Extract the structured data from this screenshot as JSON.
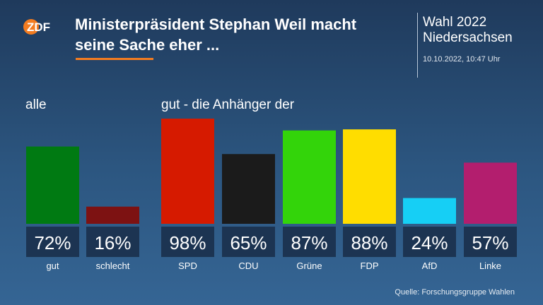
{
  "header": {
    "logo_text": "ZDF",
    "title_line1": "Ministerpräsident Stephan Weil macht",
    "title_line2": "seine Sache eher ...",
    "election_line1": "Wahl 2022",
    "election_line2": "Niedersachsen",
    "timestamp": "10.10.2022, 10:47 Uhr"
  },
  "colors": {
    "accent": "#f47c20",
    "value_box": "#1c3452"
  },
  "chart_data": {
    "type": "bar",
    "groups": [
      {
        "label": "alle",
        "categories": [
          "gut",
          "schlecht"
        ]
      },
      {
        "label": "gut - die Anhänger der",
        "categories": [
          "SPD",
          "CDU",
          "Grüne",
          "FDP",
          "AfD",
          "Linke"
        ]
      }
    ],
    "categories": [
      "gut",
      "schlecht",
      "SPD",
      "CDU",
      "Grüne",
      "FDP",
      "AfD",
      "Linke"
    ],
    "values": [
      72,
      16,
      98,
      65,
      87,
      88,
      24,
      57
    ],
    "value_labels": [
      "72%",
      "16%",
      "98%",
      "65%",
      "87%",
      "88%",
      "24%",
      "57%"
    ],
    "bar_colors": [
      "#007a12",
      "#7d1212",
      "#d61a00",
      "#1b1b1b",
      "#33d40a",
      "#ffdd00",
      "#16cff5",
      "#b31e6e"
    ],
    "unit": "%",
    "ylim": [
      0,
      100
    ]
  },
  "source": "Quelle: Forschungsgruppe Wahlen"
}
